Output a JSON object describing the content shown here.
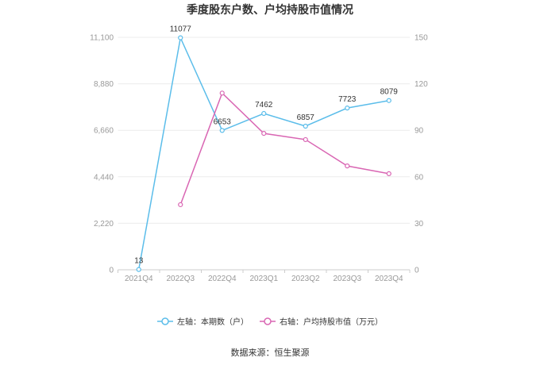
{
  "source": "数据来源：恒生聚源",
  "chart_data": {
    "type": "line",
    "title": "季度股东户数、户均持股市值情况",
    "categories": [
      "2021Q4",
      "2022Q3",
      "2022Q4",
      "2023Q1",
      "2023Q2",
      "2023Q3",
      "2023Q4"
    ],
    "left_axis": {
      "ylim": [
        0,
        11100
      ],
      "ticks": [
        0,
        2220,
        4440,
        6660,
        8880,
        11100
      ],
      "tick_labels": [
        "0",
        "2,220",
        "4,440",
        "6,660",
        "8,880",
        "11,100"
      ]
    },
    "right_axis": {
      "ylim": [
        0,
        150
      ],
      "ticks": [
        0,
        30,
        60,
        90,
        120,
        150
      ],
      "tick_labels": [
        "0",
        "30",
        "60",
        "90",
        "120",
        "150"
      ]
    },
    "series": [
      {
        "name": "左轴：本期数（户）",
        "axis": "left",
        "color": "#5bbdea",
        "show_labels": true,
        "values": [
          13,
          11077,
          6653,
          7462,
          6857,
          7723,
          8079
        ]
      },
      {
        "name": "右轴：户均持股市值（万元）",
        "axis": "right",
        "color": "#d966b3",
        "show_labels": false,
        "values": [
          null,
          42,
          114,
          88,
          84,
          67,
          62
        ]
      }
    ],
    "grid": true,
    "legend": "bottom"
  }
}
